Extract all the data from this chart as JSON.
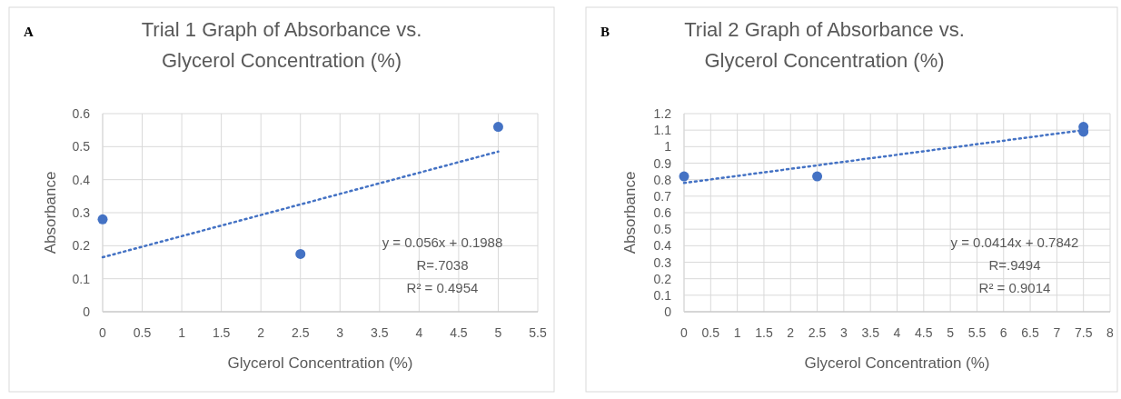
{
  "chart_data": [
    {
      "type": "scatter",
      "title": "Trial 1 Graph of Absorbance vs. Glycerol Concentration (%)",
      "xlabel": "Glycerol Concentration (%)",
      "ylabel": "Absorbance",
      "annotations": [
        "A",
        "y = 0.056x + 0.1988",
        "R=.7038",
        "R² = 0.4954"
      ],
      "xlim": [
        0,
        5.5
      ],
      "xticks": [
        0,
        0.5,
        1,
        1.5,
        2,
        2.5,
        3,
        3.5,
        4,
        4.5,
        5,
        5.5
      ],
      "ylim": [
        0,
        0.6
      ],
      "yticks": [
        0,
        0.1,
        0.2,
        0.3,
        0.4,
        0.5,
        0.6
      ],
      "grid": true,
      "marker": "circle",
      "series": [
        {
          "color": "#4472c4",
          "x": [
            0,
            2.5,
            5
          ],
          "values": [
            0.28,
            0.175,
            0.56
          ]
        },
        {
          "type": "line",
          "color": "#4472c4",
          "line_style": "dotted",
          "marker": "none",
          "x": [
            0,
            5
          ],
          "values": [
            0.165,
            0.485
          ]
        }
      ]
    },
    {
      "type": "scatter",
      "title": "Trial 2 Graph of Absorbance vs. Glycerol Concentration (%)",
      "xlabel": "Glycerol Concentration (%)",
      "ylabel": "Absorbance",
      "annotations": [
        "B",
        "y = 0.0414x + 0.7842",
        "R=.9494",
        "R² = 0.9014"
      ],
      "xlim": [
        0,
        8
      ],
      "xticks": [
        0,
        0.5,
        1,
        1.5,
        2,
        2.5,
        3,
        3.5,
        4,
        4.5,
        5,
        5.5,
        6,
        6.5,
        7,
        7.5,
        8
      ],
      "ylim": [
        0,
        1.2
      ],
      "yticks": [
        0,
        0.1,
        0.2,
        0.3,
        0.4,
        0.5,
        0.6,
        0.7,
        0.8,
        0.9,
        1,
        1.1,
        1.2
      ],
      "grid": true,
      "marker": "circle",
      "series": [
        {
          "color": "#4472c4",
          "x": [
            0,
            2.5,
            7.5,
            7.5
          ],
          "values": [
            0.82,
            0.82,
            1.09,
            1.12
          ]
        },
        {
          "type": "line",
          "color": "#4472c4",
          "line_style": "dotted",
          "marker": "none",
          "x": [
            0,
            7.5
          ],
          "values": [
            0.78,
            1.1
          ]
        }
      ]
    }
  ]
}
